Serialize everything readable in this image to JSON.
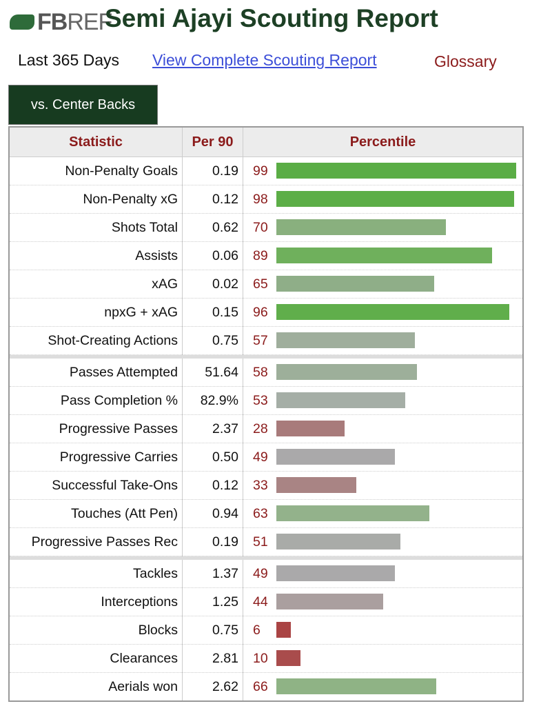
{
  "header": {
    "logo_text": "FBREF",
    "title": "Semi Ajayi Scouting Report"
  },
  "nav": {
    "period": "Last 365 Days",
    "complete_link": "View Complete Scouting Report",
    "glossary": "Glossary"
  },
  "tab": "vs. Center Backs",
  "columns": [
    "Statistic",
    "Per 90",
    "Percentile"
  ],
  "groups": [
    [
      {
        "stat": "Non-Penalty Goals",
        "per90": "0.19",
        "pct": 99,
        "color": "#5aad45"
      },
      {
        "stat": "Non-Penalty xG",
        "per90": "0.12",
        "pct": 98,
        "color": "#5cae47"
      },
      {
        "stat": "Shots Total",
        "per90": "0.62",
        "pct": 70,
        "color": "#89b07e"
      },
      {
        "stat": "Assists",
        "per90": "0.06",
        "pct": 89,
        "color": "#6fb05c"
      },
      {
        "stat": "xAG",
        "per90": "0.02",
        "pct": 65,
        "color": "#8fae88"
      },
      {
        "stat": "npxG + xAG",
        "per90": "0.15",
        "pct": 96,
        "color": "#60ae4b"
      },
      {
        "stat": "Shot-Creating Actions",
        "per90": "0.75",
        "pct": 57,
        "color": "#9fae9c"
      }
    ],
    [
      {
        "stat": "Passes Attempted",
        "per90": "51.64",
        "pct": 58,
        "color": "#9daf9a"
      },
      {
        "stat": "Pass Completion %",
        "per90": "82.9%",
        "pct": 53,
        "color": "#a5aea6"
      },
      {
        "stat": "Progressive Passes",
        "per90": "2.37",
        "pct": 28,
        "color": "#a87b7b"
      },
      {
        "stat": "Progressive Carries",
        "per90": "0.50",
        "pct": 49,
        "color": "#aaa9aa"
      },
      {
        "stat": "Successful Take-Ons",
        "per90": "0.12",
        "pct": 33,
        "color": "#a98484"
      },
      {
        "stat": "Touches (Att Pen)",
        "per90": "0.94",
        "pct": 63,
        "color": "#93b28b"
      },
      {
        "stat": "Progressive Passes Rec",
        "per90": "0.19",
        "pct": 51,
        "color": "#a9aba8"
      }
    ],
    [
      {
        "stat": "Tackles",
        "per90": "1.37",
        "pct": 49,
        "color": "#aaa9aa"
      },
      {
        "stat": "Interceptions",
        "per90": "1.25",
        "pct": 44,
        "color": "#aa9f9f"
      },
      {
        "stat": "Blocks",
        "per90": "0.75",
        "pct": 6,
        "color": "#aa4444"
      },
      {
        "stat": "Clearances",
        "per90": "2.81",
        "pct": 10,
        "color": "#a94c4c"
      },
      {
        "stat": "Aerials won",
        "per90": "2.62",
        "pct": 66,
        "color": "#8fb385"
      }
    ]
  ]
}
